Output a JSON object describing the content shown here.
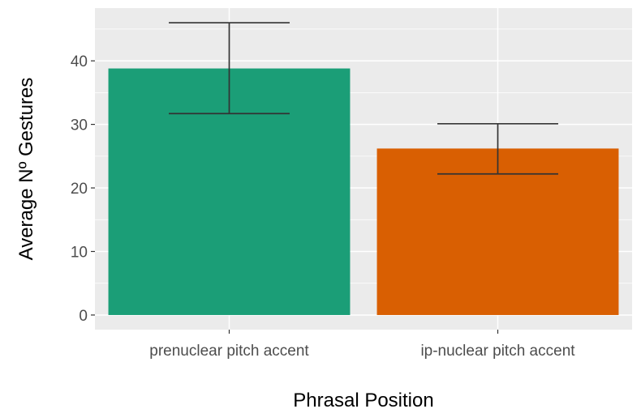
{
  "chart_data": {
    "type": "bar",
    "title": "",
    "xlabel": "Phrasal Position",
    "ylabel": "Average Nº Gestures",
    "categories": [
      "prenuclear pitch accent",
      "ip-nuclear pitch accent"
    ],
    "values": [
      38.8,
      26.2
    ],
    "error_bars": [
      {
        "lower": 31.7,
        "upper": 46.0
      },
      {
        "lower": 22.2,
        "upper": 30.1
      }
    ],
    "colors": [
      "#1b9e77",
      "#d95f02"
    ],
    "ylim": [
      -2.3,
      48.3
    ],
    "yticks": [
      0,
      10,
      20,
      30,
      40
    ],
    "ytick_labels": [
      "0",
      "10",
      "20",
      "30",
      "40"
    ],
    "grid": true,
    "legend": "none",
    "panel_background": "#ebebeb",
    "grid_color": "#ffffff",
    "errorbar_color": "#333333"
  }
}
